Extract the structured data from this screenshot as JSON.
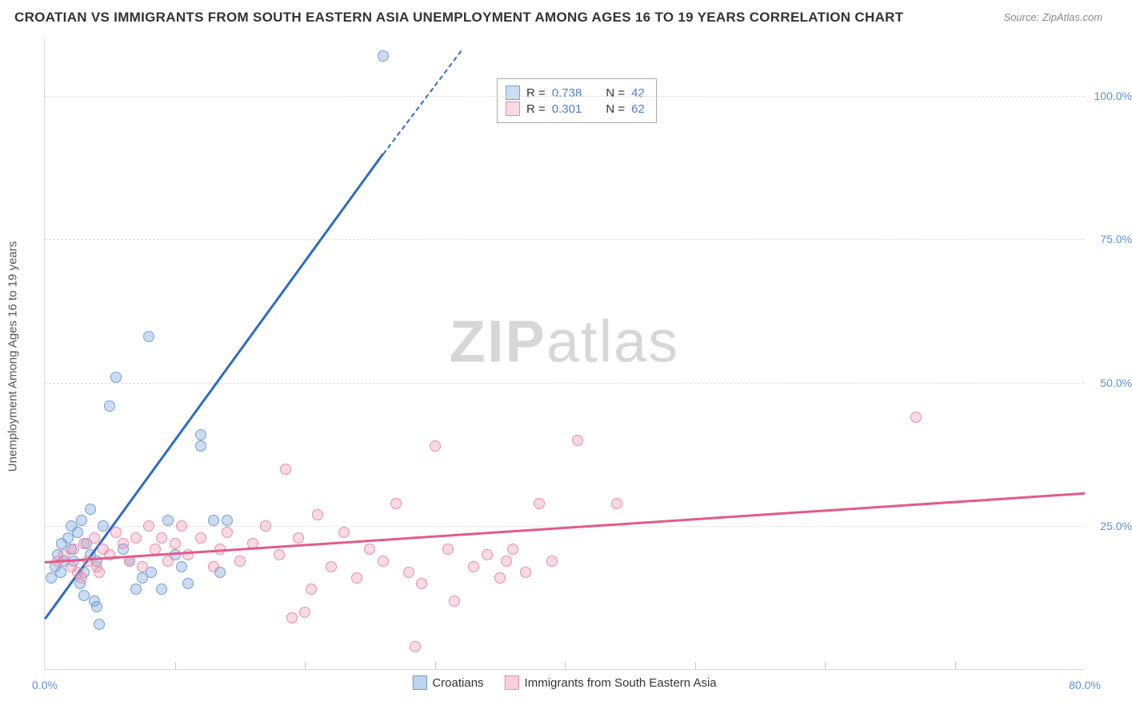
{
  "title": "CROATIAN VS IMMIGRANTS FROM SOUTH EASTERN ASIA UNEMPLOYMENT AMONG AGES 16 TO 19 YEARS CORRELATION CHART",
  "source": "Source: ZipAtlas.com",
  "y_axis_title": "Unemployment Among Ages 16 to 19 years",
  "watermark_bold": "ZIP",
  "watermark_rest": "atlas",
  "plot": {
    "xlim": [
      0,
      80
    ],
    "ylim": [
      0,
      110
    ],
    "x_ticks": [
      0,
      80
    ],
    "x_tick_labels": [
      "0.0%",
      "80.0%"
    ],
    "x_minor_ticks": [
      10,
      20,
      30,
      40,
      50,
      60,
      70
    ],
    "y_ticks": [
      25,
      50,
      75,
      100
    ],
    "y_tick_labels": [
      "25.0%",
      "50.0%",
      "75.0%",
      "100.0%"
    ],
    "grid_color": "#dcdcdc",
    "background_color": "#ffffff",
    "label_color": "#5b8fd6",
    "label_fontsize": 14
  },
  "series": [
    {
      "name": "Croatians",
      "color_fill": "rgba(111,159,216,0.35)",
      "color_stroke": "#6f9fd8",
      "line_color": "#2f6bc2",
      "r": 0.738,
      "n": 42,
      "trend": {
        "x1": 0,
        "y1": 9,
        "x2": 26,
        "y2": 90
      },
      "trend_dashed": {
        "x1": 26,
        "y1": 90,
        "x2": 32,
        "y2": 108
      },
      "points": [
        [
          0.5,
          16
        ],
        [
          0.8,
          18
        ],
        [
          1,
          20
        ],
        [
          1.2,
          17
        ],
        [
          1.3,
          22
        ],
        [
          1.5,
          19
        ],
        [
          1.8,
          23
        ],
        [
          2,
          21
        ],
        [
          2,
          25
        ],
        [
          2.2,
          19
        ],
        [
          2.5,
          24
        ],
        [
          2.8,
          26
        ],
        [
          3,
          17
        ],
        [
          3,
          13
        ],
        [
          3.2,
          22
        ],
        [
          3.5,
          28
        ],
        [
          3.8,
          12
        ],
        [
          4,
          11
        ],
        [
          4,
          19
        ],
        [
          4.2,
          8
        ],
        [
          4.5,
          25
        ],
        [
          5,
          46
        ],
        [
          5.5,
          51
        ],
        [
          6,
          21
        ],
        [
          6.5,
          19
        ],
        [
          7,
          14
        ],
        [
          7.5,
          16
        ],
        [
          8,
          58
        ],
        [
          8.2,
          17
        ],
        [
          9,
          14
        ],
        [
          9.5,
          26
        ],
        [
          10,
          20
        ],
        [
          10.5,
          18
        ],
        [
          11,
          15
        ],
        [
          12,
          39
        ],
        [
          12,
          41
        ],
        [
          13,
          26
        ],
        [
          13.5,
          17
        ],
        [
          14,
          26
        ],
        [
          26,
          107
        ],
        [
          3.5,
          20
        ],
        [
          2.7,
          15
        ]
      ]
    },
    {
      "name": "Immigrants from South Eastern Asia",
      "color_fill": "rgba(233,140,170,0.32)",
      "color_stroke": "#e98caa",
      "line_color": "#e35a8a",
      "r": 0.301,
      "n": 62,
      "trend": {
        "x1": 0,
        "y1": 19,
        "x2": 80,
        "y2": 31
      },
      "points": [
        [
          1,
          19
        ],
        [
          1.5,
          20
        ],
        [
          2,
          18
        ],
        [
          2.2,
          21
        ],
        [
          2.5,
          17
        ],
        [
          3,
          22
        ],
        [
          3.3,
          19
        ],
        [
          3.8,
          23
        ],
        [
          4,
          18
        ],
        [
          4.5,
          21
        ],
        [
          5,
          20
        ],
        [
          5.5,
          24
        ],
        [
          6,
          22
        ],
        [
          6.5,
          19
        ],
        [
          7,
          23
        ],
        [
          7.5,
          18
        ],
        [
          8,
          25
        ],
        [
          8.5,
          21
        ],
        [
          9,
          23
        ],
        [
          9.5,
          19
        ],
        [
          10,
          22
        ],
        [
          10.5,
          25
        ],
        [
          11,
          20
        ],
        [
          12,
          23
        ],
        [
          13,
          18
        ],
        [
          13.5,
          21
        ],
        [
          14,
          24
        ],
        [
          15,
          19
        ],
        [
          16,
          22
        ],
        [
          17,
          25
        ],
        [
          18,
          20
        ],
        [
          18.5,
          35
        ],
        [
          19,
          9
        ],
        [
          19.5,
          23
        ],
        [
          20,
          10
        ],
        [
          20.5,
          14
        ],
        [
          21,
          27
        ],
        [
          22,
          18
        ],
        [
          23,
          24
        ],
        [
          24,
          16
        ],
        [
          25,
          21
        ],
        [
          26,
          19
        ],
        [
          27,
          29
        ],
        [
          28,
          17
        ],
        [
          28.5,
          4
        ],
        [
          29,
          15
        ],
        [
          30,
          39
        ],
        [
          31,
          21
        ],
        [
          31.5,
          12
        ],
        [
          33,
          18
        ],
        [
          34,
          20
        ],
        [
          35,
          16
        ],
        [
          35.5,
          19
        ],
        [
          36,
          21
        ],
        [
          37,
          17
        ],
        [
          38,
          29
        ],
        [
          39,
          19
        ],
        [
          41,
          40
        ],
        [
          44,
          29
        ],
        [
          67,
          44
        ],
        [
          2.8,
          16
        ],
        [
          4.2,
          17
        ]
      ]
    }
  ],
  "legend_top": {
    "r_label": "R =",
    "n_label": "N ="
  },
  "bottom_legend": [
    {
      "label": "Croatians",
      "fill": "rgba(111,159,216,0.45)",
      "stroke": "#6f9fd8"
    },
    {
      "label": "Immigrants from South Eastern Asia",
      "fill": "rgba(233,140,170,0.4)",
      "stroke": "#e98caa"
    }
  ]
}
